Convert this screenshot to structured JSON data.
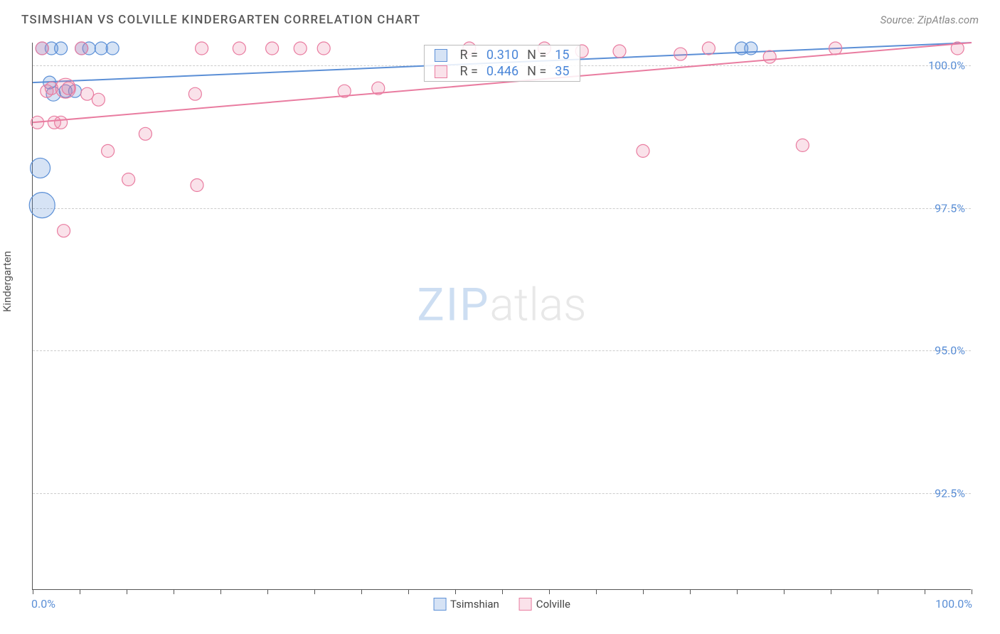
{
  "title": "TSIMSHIAN VS COLVILLE KINDERGARTEN CORRELATION CHART",
  "source": "Source: ZipAtlas.com",
  "y_axis_title": "Kindergarten",
  "chart": {
    "type": "scatter",
    "xlim": [
      0,
      100
    ],
    "ylim": [
      90.8,
      100.4
    ],
    "x_tick_positions": [
      0,
      5,
      10,
      15,
      20,
      25,
      30,
      35,
      40,
      45,
      50,
      55,
      60,
      65,
      70,
      75,
      80,
      85,
      90,
      95,
      100
    ],
    "x_min_label": "0.0%",
    "x_max_label": "100.0%",
    "y_grid": [
      {
        "v": 100.0,
        "label": "100.0%"
      },
      {
        "v": 97.5,
        "label": "97.5%"
      },
      {
        "v": 95.0,
        "label": "95.0%"
      },
      {
        "v": 92.5,
        "label": "92.5%"
      }
    ],
    "background_color": "#ffffff",
    "grid_color": "#cccccc",
    "axis_color": "#555555",
    "tick_label_color": "#5b8fd6",
    "watermark_zip": "ZIP",
    "watermark_atlas": "atlas",
    "series": [
      {
        "name": "Tsimshian",
        "color": "#5b8fd6",
        "fill": "rgba(91,143,214,0.25)",
        "stroke": "#5b8fd6",
        "marker_r": 9,
        "line": {
          "x1": 0,
          "y1": 99.7,
          "x2": 100,
          "y2": 100.4
        },
        "R": "0.310",
        "N": "15",
        "points": [
          {
            "x": 1.0,
            "y": 100.3,
            "r": 9
          },
          {
            "x": 1.8,
            "y": 99.7,
            "r": 9
          },
          {
            "x": 2.0,
            "y": 100.3,
            "r": 9
          },
          {
            "x": 3.0,
            "y": 100.3,
            "r": 9
          },
          {
            "x": 3.5,
            "y": 99.55,
            "r": 9
          },
          {
            "x": 4.5,
            "y": 99.55,
            "r": 9
          },
          {
            "x": 5.2,
            "y": 100.3,
            "r": 9
          },
          {
            "x": 6.0,
            "y": 100.3,
            "r": 9
          },
          {
            "x": 7.3,
            "y": 100.3,
            "r": 9
          },
          {
            "x": 8.5,
            "y": 100.3,
            "r": 9
          },
          {
            "x": 75.5,
            "y": 100.3,
            "r": 9
          },
          {
            "x": 76.5,
            "y": 100.3,
            "r": 9
          },
          {
            "x": 0.8,
            "y": 98.2,
            "r": 14
          },
          {
            "x": 1.0,
            "y": 97.55,
            "r": 18
          },
          {
            "x": 2.2,
            "y": 99.5,
            "r": 10
          }
        ]
      },
      {
        "name": "Colville",
        "color": "#e97ca0",
        "fill": "rgba(233,124,160,0.22)",
        "stroke": "#e97ca0",
        "marker_r": 9,
        "line": {
          "x1": 0,
          "y1": 99.0,
          "x2": 100,
          "y2": 100.4
        },
        "R": "0.446",
        "N": "35",
        "points": [
          {
            "x": 0.5,
            "y": 99.0,
            "r": 9
          },
          {
            "x": 1.0,
            "y": 100.3,
            "r": 9
          },
          {
            "x": 1.5,
            "y": 99.55,
            "r": 9
          },
          {
            "x": 2.0,
            "y": 99.6,
            "r": 9
          },
          {
            "x": 2.3,
            "y": 99.0,
            "r": 9
          },
          {
            "x": 3.0,
            "y": 99.0,
            "r": 9
          },
          {
            "x": 3.8,
            "y": 99.6,
            "r": 9
          },
          {
            "x": 3.3,
            "y": 97.1,
            "r": 9
          },
          {
            "x": 5.2,
            "y": 100.3,
            "r": 9
          },
          {
            "x": 5.8,
            "y": 99.5,
            "r": 9
          },
          {
            "x": 7.0,
            "y": 99.4,
            "r": 9
          },
          {
            "x": 8.0,
            "y": 98.5,
            "r": 9
          },
          {
            "x": 10.2,
            "y": 98.0,
            "r": 9
          },
          {
            "x": 12.0,
            "y": 98.8,
            "r": 9
          },
          {
            "x": 17.3,
            "y": 99.5,
            "r": 9
          },
          {
            "x": 17.5,
            "y": 97.9,
            "r": 9
          },
          {
            "x": 18.0,
            "y": 100.3,
            "r": 9
          },
          {
            "x": 22.0,
            "y": 100.3,
            "r": 9
          },
          {
            "x": 25.5,
            "y": 100.3,
            "r": 9
          },
          {
            "x": 28.5,
            "y": 100.3,
            "r": 9
          },
          {
            "x": 31.0,
            "y": 100.3,
            "r": 9
          },
          {
            "x": 33.2,
            "y": 99.55,
            "r": 9
          },
          {
            "x": 36.8,
            "y": 99.6,
            "r": 9
          },
          {
            "x": 46.5,
            "y": 100.3,
            "r": 9
          },
          {
            "x": 54.5,
            "y": 100.3,
            "r": 9
          },
          {
            "x": 58.5,
            "y": 100.25,
            "r": 9
          },
          {
            "x": 62.5,
            "y": 100.25,
            "r": 9
          },
          {
            "x": 65.0,
            "y": 98.5,
            "r": 9
          },
          {
            "x": 69.0,
            "y": 100.2,
            "r": 9
          },
          {
            "x": 72.0,
            "y": 100.3,
            "r": 9
          },
          {
            "x": 78.5,
            "y": 100.15,
            "r": 9
          },
          {
            "x": 82.0,
            "y": 98.6,
            "r": 9
          },
          {
            "x": 85.5,
            "y": 100.3,
            "r": 9
          },
          {
            "x": 98.5,
            "y": 100.3,
            "r": 9
          },
          {
            "x": 3.5,
            "y": 99.6,
            "r": 14
          }
        ]
      }
    ],
    "legend_bottom": [
      {
        "swatch": "#5b8fd6",
        "fill": "rgba(91,143,214,0.25)",
        "label": "Tsimshian"
      },
      {
        "swatch": "#e97ca0",
        "fill": "rgba(233,124,160,0.22)",
        "label": "Colville"
      }
    ]
  }
}
